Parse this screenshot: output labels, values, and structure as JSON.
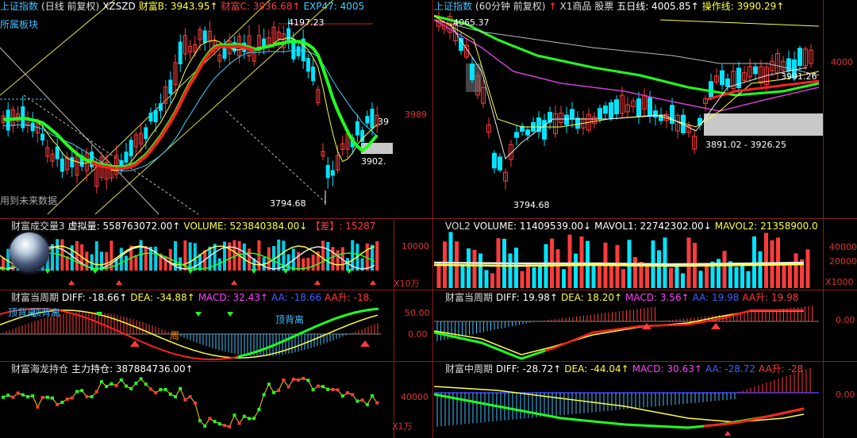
{
  "left_main": {
    "header": [
      "上证指数",
      "(日线 前复权)",
      "XZSZD",
      "财富B: 3943.95↑",
      "财富C: 3936.68↑",
      "EXP47: 4005"
    ],
    "tag": "所属板块",
    "future_note": "用到未来数据",
    "hi_label": "4197.23",
    "lo_label": "3794.68",
    "label_3902": "3902.",
    "label_39": "39",
    "right_axis": "3989"
  },
  "right_main": {
    "header": [
      "上证指数",
      "(60分钟 前复权)",
      "↑",
      "X1商品 股票",
      "五日线: 4005.85↑",
      "操作线: 3990.29↑"
    ],
    "hi_label": "4065.37",
    "lo_label": "3794.68",
    "range_label": "3891.02 - 3926.25",
    "label_3991": "3991.26",
    "right_axis": "4000"
  },
  "left_vol": {
    "header": [
      "财富成交量3",
      "虚拟量: 558763072.00↑",
      "VOLUME: 523840384.00↓",
      "【差】: 15287"
    ],
    "axis_top": "10000",
    "axis_unit": "X10万"
  },
  "right_vol": {
    "header": [
      "VOL2",
      "VOLUME: 11409539.00↓",
      "MAVOL1: 22742302.00↓",
      "MAVOL2: 21358900.0"
    ],
    "axis_top": "40000",
    "axis_mid": "20000",
    "axis_unit": "X1000"
  },
  "left_macd": {
    "header": [
      "财富当周期",
      "DIFF: -18.66↑",
      "DEA: -34.88↑",
      "MACD: 32.43↑",
      "AA: -18.66",
      "AA升: -18."
    ],
    "axis_top": "50.00",
    "axis_zero": "0.00",
    "tag1": "顶背离",
    "tag2": "顶背离",
    "tag3": "顶背离",
    "tag_zhou": "周"
  },
  "right_macd": {
    "header": [
      "财富当周期",
      "DIFF: 19.98↑",
      "DEA: 18.20↑",
      "MACD: 3.56↑",
      "AA: 19.98",
      "AA升: 19.98"
    ],
    "axis_zero": "0.00"
  },
  "left_hold": {
    "header": [
      "财富海龙持仓",
      "主力持仓: 387884736.00↑"
    ],
    "axis_mid": "40000",
    "axis_unit": "X1万"
  },
  "right_mid": {
    "header": [
      "财富中周期",
      "DIFF: -28.72↑",
      "DEA: -44.04↑",
      "MACD: 30.63↑",
      "AA: -28.72",
      "AA升: -28"
    ],
    "axis_zero": "0.00"
  },
  "colors": {
    "up": "#ff3b3b",
    "down": "#00e5ff",
    "ma_red": "#ff2020",
    "ma_green": "#20ff20",
    "ma_yellow": "#ffff40",
    "ma_cyan": "#40d0ff",
    "ma_magenta": "#d040d0",
    "white": "#e8e8e8",
    "divider": "#8a1c1c"
  }
}
